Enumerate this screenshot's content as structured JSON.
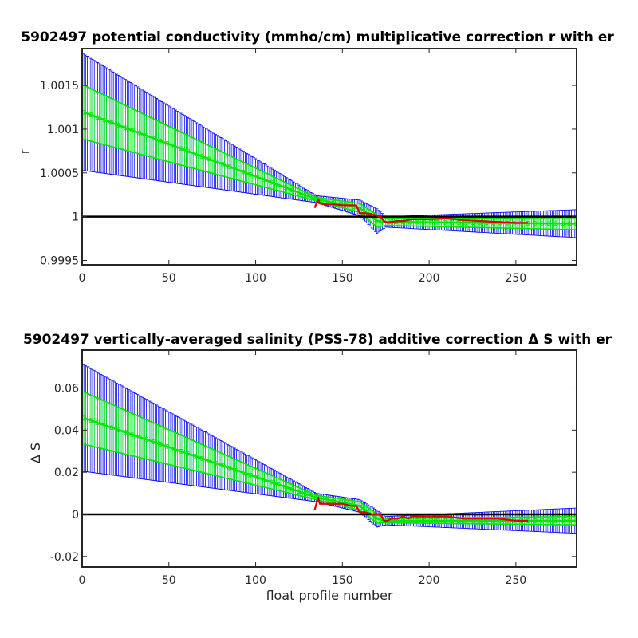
{
  "chart_data": [
    {
      "type": "line",
      "title": "5902497 potential conductivity (mmho/cm) multiplicative correction r with er",
      "xlabel": "",
      "ylabel": "r",
      "xlim": [
        0,
        285
      ],
      "ylim": [
        0.99945,
        1.00192
      ],
      "xticks": [
        0,
        50,
        100,
        150,
        200,
        250
      ],
      "xtick_labels": [
        "0",
        "50",
        "100",
        "150",
        "200",
        "250"
      ],
      "yticks": [
        0.9995,
        1.0,
        1.0005,
        1.001,
        1.0015
      ],
      "ytick_labels": [
        "0.9995",
        "1",
        "1.0005",
        "1.001",
        "1.0015"
      ],
      "grid": false,
      "reference_line": 1.0,
      "fit": {
        "x": [
          0,
          135,
          160,
          170,
          175,
          285
        ],
        "y": [
          1.0012,
          1.0002,
          1.0001,
          0.99995,
          0.99994,
          0.99992
        ],
        "sigma_inner": [
          0.00031,
          2e-05,
          5e-05,
          7e-05,
          4e-05,
          7e-05
        ],
        "sigma_outer": [
          0.00067,
          4e-05,
          9e-05,
          0.00014,
          6e-05,
          0.00016
        ]
      },
      "series": [
        {
          "role": "calibration",
          "x": [
            134,
            136,
            137,
            140,
            145,
            150,
            155,
            158,
            160,
            163,
            167,
            170,
            172,
            174,
            176,
            178,
            182,
            185,
            190,
            200,
            210,
            220,
            230,
            240,
            250,
            257
          ],
          "y": [
            1.0001,
            1.0002,
            1.00015,
            1.00014,
            1.00014,
            1.00013,
            1.00013,
            1.00013,
            1.00004,
            1.00004,
            1.00003,
            1.00001,
            1.0,
            0.99995,
            0.99993,
            0.99994,
            0.99995,
            0.99995,
            0.99997,
            0.99997,
            0.99998,
            0.99996,
            0.99995,
            0.99994,
            0.99993,
            0.99993
          ]
        }
      ],
      "colors": {
        "error_outer": "#0000ff",
        "error_inner": "#00ff00",
        "fit_line": "#00e600",
        "calibration": "#e00000",
        "reference": "#000000"
      }
    },
    {
      "type": "line",
      "title": "5902497 vertically-averaged salinity (PSS-78) additive correction Δ S with er",
      "xlabel": "float profile number",
      "ylabel": "Δ S",
      "xlim": [
        0,
        285
      ],
      "ylim": [
        -0.025,
        0.078
      ],
      "xticks": [
        0,
        50,
        100,
        150,
        200,
        250
      ],
      "xtick_labels": [
        "0",
        "50",
        "100",
        "150",
        "200",
        "250"
      ],
      "yticks": [
        -0.02,
        0,
        0.02,
        0.04,
        0.06
      ],
      "ytick_labels": [
        "-0.02",
        "0",
        "0.02",
        "0.04",
        "0.06"
      ],
      "grid": false,
      "reference_line": 0,
      "fit": {
        "x": [
          0,
          135,
          160,
          170,
          175,
          285
        ],
        "y": [
          0.046,
          0.008,
          0.004,
          -0.002,
          -0.003,
          -0.003
        ],
        "sigma_inner": [
          0.0125,
          0.001,
          0.002,
          0.002,
          0.001,
          0.002
        ],
        "sigma_outer": [
          0.0255,
          0.002,
          0.003,
          0.004,
          0.002,
          0.006
        ]
      },
      "series": [
        {
          "role": "calibration",
          "x": [
            134,
            136,
            137,
            140,
            145,
            150,
            155,
            158,
            160,
            163,
            167,
            170,
            172,
            174,
            176,
            178,
            182,
            185,
            188,
            190,
            200,
            210,
            220,
            230,
            240,
            250,
            257
          ],
          "y": [
            0.002,
            0.008,
            0.005,
            0.005,
            0.005,
            0.005,
            0.004,
            0.004,
            0.001,
            0.001,
            0.0,
            0.0,
            0.0,
            -0.003,
            -0.003,
            -0.002,
            -0.002,
            -0.001,
            -0.002,
            -0.001,
            -0.001,
            -0.001,
            -0.002,
            -0.002,
            -0.002,
            -0.003,
            -0.003
          ]
        }
      ],
      "colors": {
        "error_outer": "#0000ff",
        "error_inner": "#00ff00",
        "fit_line": "#00e600",
        "calibration": "#e00000",
        "reference": "#000000"
      }
    }
  ]
}
